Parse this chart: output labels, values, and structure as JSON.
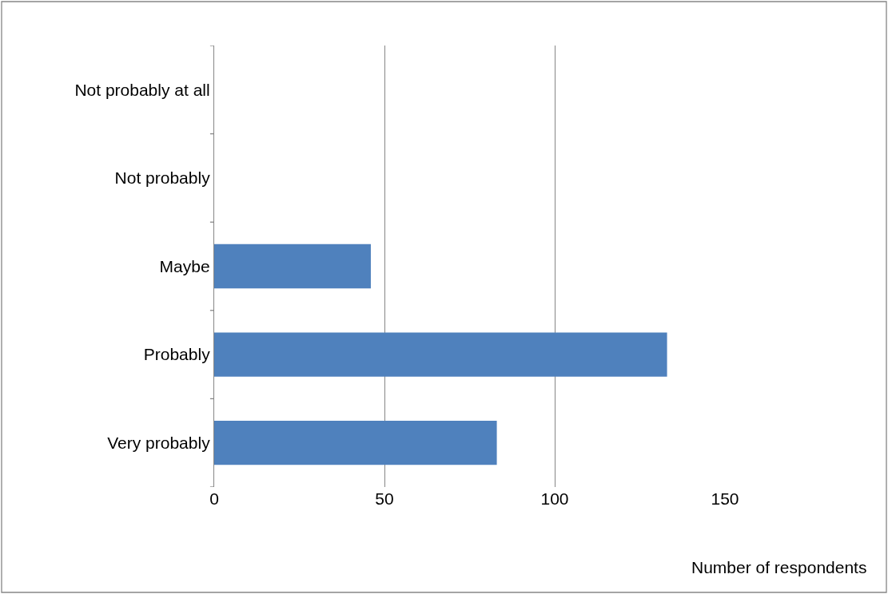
{
  "chart_data": {
    "type": "bar",
    "orientation": "horizontal",
    "xlabel": "Number of respondents",
    "categories": [
      "Not probably at all",
      "Not probably",
      "Maybe",
      "Probably",
      "Very probably"
    ],
    "values": [
      0,
      0,
      46,
      133,
      83
    ],
    "color": "#4f81bd",
    "xlim": [
      0,
      150
    ],
    "xticks": [
      0,
      50,
      100,
      150
    ],
    "grid": "x",
    "legend": false
  }
}
